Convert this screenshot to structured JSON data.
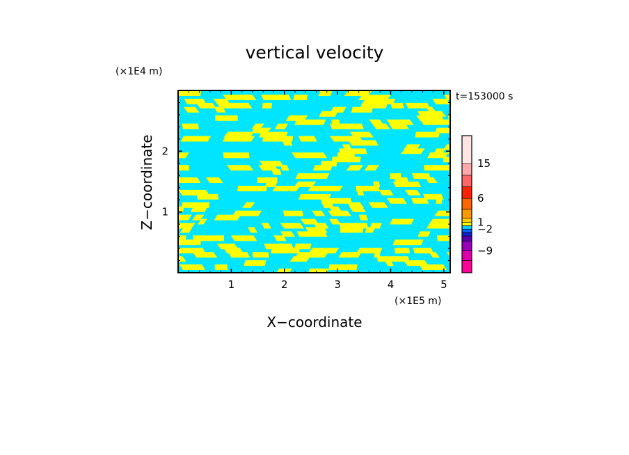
{
  "chart_data": {
    "type": "heatmap",
    "title": "vertical velocity",
    "xlabel": "X−coordinate",
    "ylabel": "Z−coordinate",
    "x_unit": "(×1E5 m)",
    "y_unit": "(×1E4 m)",
    "time_label": "t=153000 s",
    "xlim": [
      0,
      5.12
    ],
    "ylim": [
      0,
      3.0
    ],
    "x_ticks": [
      1,
      2,
      3,
      4,
      5
    ],
    "y_ticks": [
      1,
      2
    ],
    "field_colors": {
      "negative": "#00e5ff",
      "positive": "#ffff00"
    },
    "colorbar": {
      "tick_labels": [
        "15",
        "6",
        "1",
        "−2",
        "−9"
      ],
      "tick_values": [
        15,
        6,
        1,
        -2,
        -9
      ],
      "levels": [
        {
          "color": "#ff0099"
        },
        {
          "color": "#dd00aa"
        },
        {
          "color": "#9900bb"
        },
        {
          "color": "#5500aa"
        },
        {
          "color": "#1122cc"
        },
        {
          "color": "#0066ff"
        },
        {
          "color": "#00ccff"
        },
        {
          "color": "#ffff00"
        },
        {
          "color": "#ffcc00"
        },
        {
          "color": "#ff9900"
        },
        {
          "color": "#ff6600"
        },
        {
          "color": "#ff2200"
        },
        {
          "color": "#ff6666"
        },
        {
          "color": "#ffaaaa"
        },
        {
          "color": "#ffe4e4"
        }
      ]
    }
  }
}
